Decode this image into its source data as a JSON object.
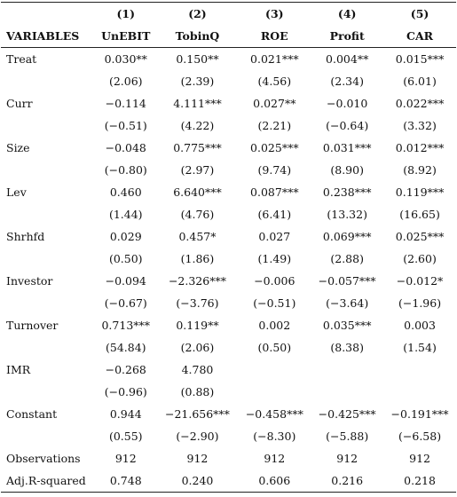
{
  "table": {
    "numbers": [
      "(1)",
      "(2)",
      "(3)",
      "(4)",
      "(5)"
    ],
    "header": [
      "VARIABLES",
      "UnEBIT",
      "TobinQ",
      "ROE",
      "Profit",
      "CAR"
    ],
    "rows": [
      [
        "Treat",
        "0.030**",
        "0.150**",
        "0.021***",
        "0.004**",
        "0.015***"
      ],
      [
        null,
        "(2.06)",
        "(2.39)",
        "(4.56)",
        "(2.34)",
        "(6.01)"
      ],
      [
        "Curr",
        "−0.114",
        "4.111***",
        "0.027**",
        "−0.010",
        "0.022***"
      ],
      [
        null,
        "(−0.51)",
        "(4.22)",
        "(2.21)",
        "(−0.64)",
        "(3.32)"
      ],
      [
        "Size",
        "−0.048",
        "0.775***",
        "0.025***",
        "0.031***",
        "0.012***"
      ],
      [
        null,
        "(−0.80)",
        "(2.97)",
        "(9.74)",
        "(8.90)",
        "(8.92)"
      ],
      [
        "Lev",
        "0.460",
        "6.640***",
        "0.087***",
        "0.238***",
        "0.119***"
      ],
      [
        null,
        "(1.44)",
        "(4.76)",
        "(6.41)",
        "(13.32)",
        "(16.65)"
      ],
      [
        "Shrhfd",
        "0.029",
        "0.457*",
        "0.027",
        "0.069***",
        "0.025***"
      ],
      [
        null,
        "(0.50)",
        "(1.86)",
        "(1.49)",
        "(2.88)",
        "(2.60)"
      ],
      [
        "Investor",
        "−0.094",
        "−2.326***",
        "−0.006",
        "−0.057***",
        "−0.012*"
      ],
      [
        null,
        "(−0.67)",
        "(−3.76)",
        "(−0.51)",
        "(−3.64)",
        "(−1.96)"
      ],
      [
        "Turnover",
        "0.713***",
        "0.119**",
        "0.002",
        "0.035***",
        "0.003"
      ],
      [
        null,
        "(54.84)",
        "(2.06)",
        "(0.50)",
        "(8.38)",
        "(1.54)"
      ],
      [
        "IMR",
        "−0.268",
        "4.780",
        null,
        null,
        null
      ],
      [
        null,
        "(−0.96)",
        "(0.88)",
        null,
        null,
        null
      ],
      [
        "Constant",
        "0.944",
        "−21.656***",
        "−0.458***",
        "−0.425***",
        "−0.191***"
      ],
      [
        null,
        "(0.55)",
        "(−2.90)",
        "(−8.30)",
        "(−5.88)",
        "(−6.58)"
      ],
      [
        "Observations",
        "912",
        "912",
        "912",
        "912",
        "912"
      ],
      [
        "Adj.R-squared",
        "0.748",
        "0.240",
        "0.606",
        "0.216",
        "0.218"
      ]
    ]
  }
}
